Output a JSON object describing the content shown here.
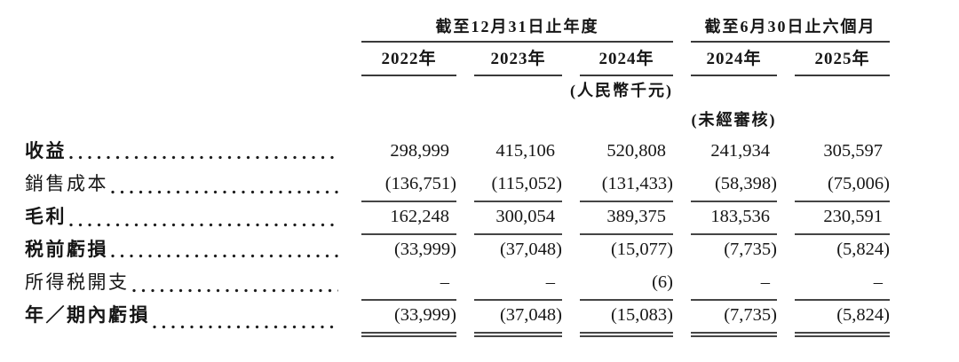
{
  "table": {
    "col_groups": [
      {
        "label": "截至12月31日止年度",
        "span": 3
      },
      {
        "label": "截至6月30日止六個月",
        "span": 2
      }
    ],
    "columns": [
      "2022年",
      "2023年",
      "2024年",
      "2024年",
      "2025年"
    ],
    "unit_note": "(人民幣千元)",
    "unaudited_note": "(未經審核)",
    "rows": [
      {
        "label": "收益",
        "values": [
          "298,999",
          "415,106",
          "520,808",
          "241,934",
          "305,597"
        ]
      },
      {
        "label": "銷售成本",
        "values": [
          "(136,751)",
          "(115,052)",
          "(131,433)",
          "(58,398)",
          "(75,006)"
        ]
      },
      {
        "label": "毛利",
        "values": [
          "162,248",
          "300,054",
          "389,375",
          "183,536",
          "230,591"
        ]
      },
      {
        "label": "税前虧損",
        "values": [
          "(33,999)",
          "(37,048)",
          "(15,077)",
          "(7,735)",
          "(5,824)"
        ]
      },
      {
        "label": "所得税開支",
        "values": [
          "–",
          "–",
          "(6)",
          "–",
          "–"
        ]
      },
      {
        "label": "年／期內虧損",
        "values": [
          "(33,999)",
          "(37,048)",
          "(15,083)",
          "(7,735)",
          "(5,824)"
        ]
      }
    ]
  }
}
